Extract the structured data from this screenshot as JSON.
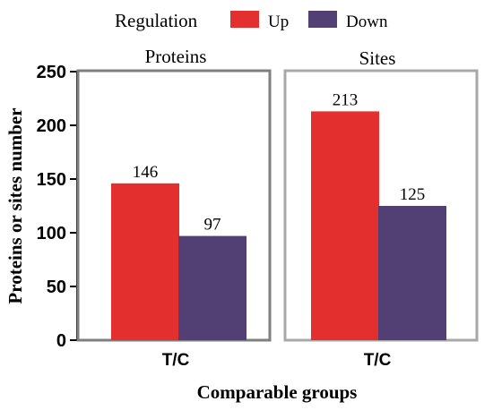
{
  "legend": {
    "title": "Regulation",
    "items": [
      {
        "label": "Up",
        "color": "#e3302e"
      },
      {
        "label": "Down",
        "color": "#523f73"
      }
    ]
  },
  "chart_data": {
    "type": "bar",
    "ylabel": "Proteins or sites number",
    "xlabel": "Comparable groups",
    "ylim": [
      0,
      250
    ],
    "yticks": [
      0,
      50,
      100,
      150,
      200,
      250
    ],
    "legend_placement": "top",
    "panels": [
      {
        "title": "Proteins",
        "categories": [
          "T/C"
        ],
        "series": [
          {
            "name": "Up",
            "values": [
              146
            ]
          },
          {
            "name": "Down",
            "values": [
              97
            ]
          }
        ]
      },
      {
        "title": "Sites",
        "categories": [
          "T/C"
        ],
        "series": [
          {
            "name": "Up",
            "values": [
              213
            ]
          },
          {
            "name": "Down",
            "values": [
              125
            ]
          }
        ]
      }
    ]
  }
}
